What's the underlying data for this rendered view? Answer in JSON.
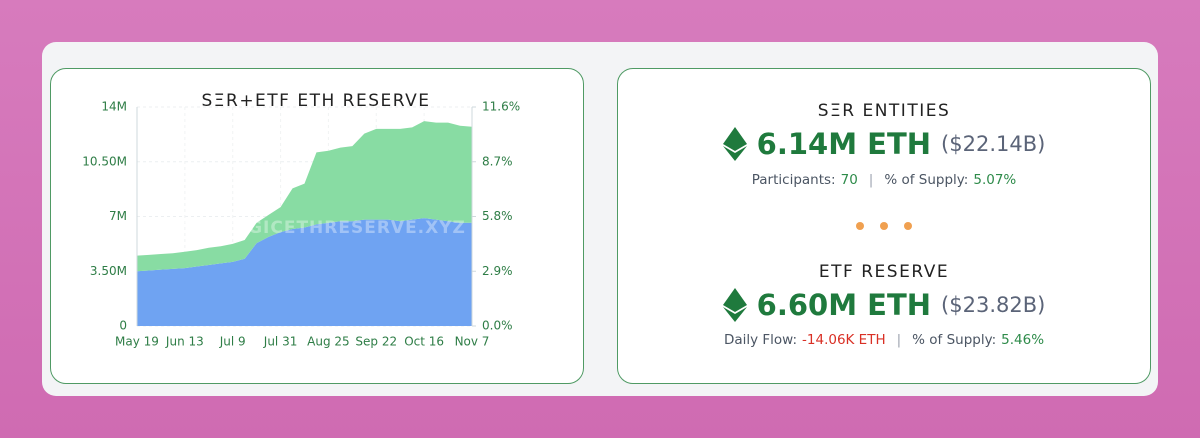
{
  "chart_data": {
    "type": "stacked-area",
    "title": "SΞR+ETF ETH RESERVE",
    "watermark": "STRATEGICETHRESERVE.XYZ",
    "categories": [
      "May 19",
      null,
      null,
      null,
      "Jun 13",
      null,
      null,
      null,
      "Jul 9",
      null,
      null,
      null,
      "Jul 31",
      null,
      null,
      null,
      "Aug 25",
      null,
      null,
      null,
      "Sep 22",
      null,
      null,
      null,
      "Oct 16",
      null,
      null,
      null,
      "Nov 7"
    ],
    "series": [
      {
        "color": "#6fa3f2",
        "values": [
          3500000,
          3550000,
          3600000,
          3650000,
          3700000,
          3800000,
          3900000,
          4000000,
          4100000,
          4300000,
          5300000,
          5700000,
          6000000,
          6200000,
          6300000,
          6500000,
          6600000,
          6700000,
          6700000,
          6800000,
          6800000,
          6800000,
          6700000,
          6800000,
          6900000,
          6800000,
          6700000,
          6600000,
          6600000
        ]
      },
      {
        "color": "#88dca3",
        "values": [
          1000000,
          1000000,
          1000000,
          1000000,
          1050000,
          1050000,
          1100000,
          1100000,
          1150000,
          1200000,
          1300000,
          1400000,
          1600000,
          2600000,
          2800000,
          4600000,
          4600000,
          4700000,
          4800000,
          5500000,
          5800000,
          5800000,
          5900000,
          5900000,
          6200000,
          6200000,
          6300000,
          6200000,
          6140000
        ]
      }
    ],
    "ylim": [
      0,
      14000000
    ],
    "yticks": [
      0,
      {
        "value": 3500000,
        "label": "3.50M"
      },
      {
        "value": 7000000,
        "label": "7M"
      },
      {
        "value": 10500000,
        "label": "10.50M"
      },
      {
        "value": 14000000,
        "label": "14M"
      }
    ],
    "y2lim": [
      0,
      11.6
    ],
    "y2ticks": [
      {
        "value": 0,
        "label": "0.0%"
      },
      {
        "value": 2.9,
        "label": "2.9%"
      },
      {
        "value": 5.8,
        "label": "5.8%"
      },
      {
        "value": 8.7,
        "label": "8.7%"
      },
      {
        "value": 11.6,
        "label": "11.6%"
      }
    ],
    "grid": true
  },
  "entities": {
    "title": "SΞR ENTITIES",
    "amount": "6.14M ETH",
    "usd": "($22.14B)",
    "stats": [
      {
        "label": "Participants:",
        "value": "70"
      },
      {
        "label": "% of Supply:",
        "value": "5.07%"
      }
    ]
  },
  "etf": {
    "title": "ETF RESERVE",
    "amount": "6.60M ETH",
    "usd": "($23.82B)",
    "stats": [
      {
        "label": "Daily Flow:",
        "value": "-14.06K ETH"
      },
      {
        "label": "% of Supply:",
        "value": "5.46%"
      }
    ]
  }
}
